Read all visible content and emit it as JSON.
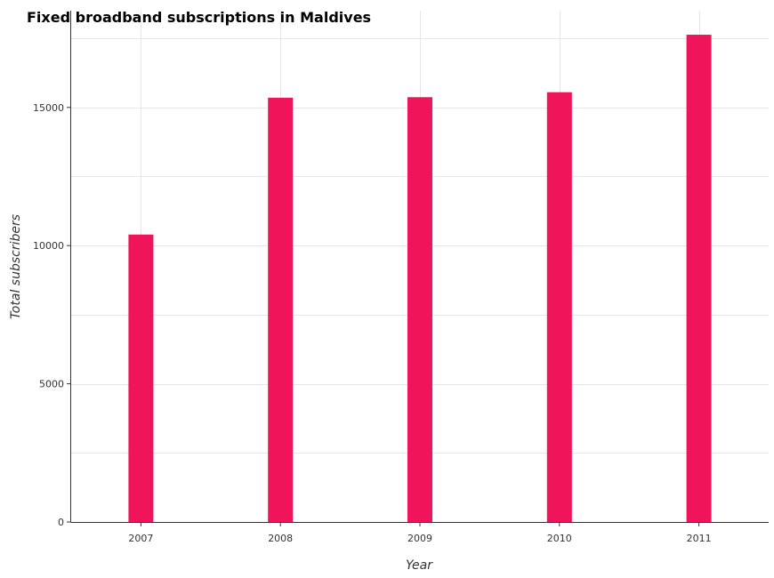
{
  "chart_data": {
    "type": "bar",
    "title": "Fixed broadband subscriptions in Maldives",
    "xlabel": "Year",
    "ylabel": "Total subscribers",
    "categories": [
      "2007",
      "2008",
      "2009",
      "2010",
      "2011"
    ],
    "values": [
      10400,
      15350,
      15370,
      15550,
      17630
    ],
    "ylim": [
      0,
      18500
    ],
    "yticks": [
      0,
      5000,
      10000,
      15000
    ],
    "ytick_labels": [
      "0",
      "5000",
      "10000",
      "15000"
    ],
    "bar_color": "#f0145a",
    "grid": true
  }
}
